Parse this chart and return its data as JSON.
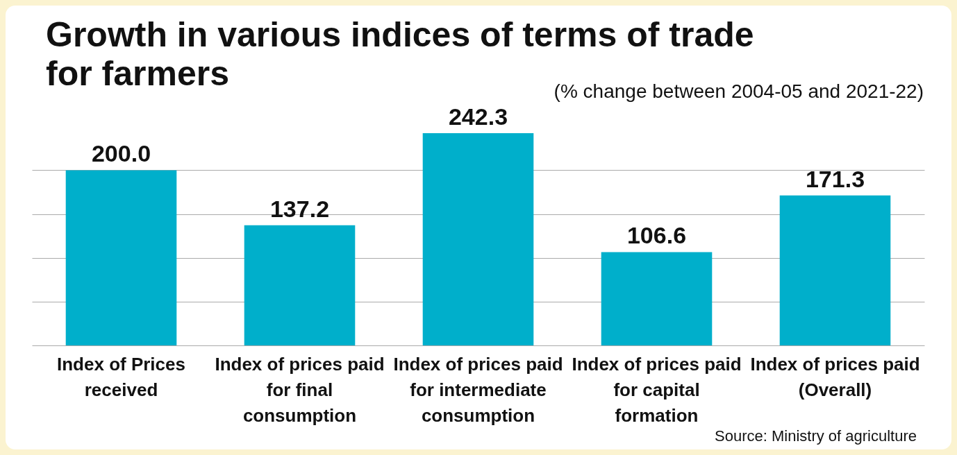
{
  "chart_data": {
    "type": "bar",
    "title": "Growth in various indices of terms of trade for farmers",
    "subtitle": "(% change between 2004-05 and 2021-22)",
    "annotations": [
      "Source: Ministry of agriculture"
    ],
    "categories": [
      "Index of Prices received",
      "Index of prices paid for final consumption",
      "Index of prices paid for intermediate consumption",
      "Index of prices paid for capital formation",
      "Index of prices paid (Overall)"
    ],
    "values": [
      200.0,
      137.2,
      242.3,
      106.6,
      171.3
    ],
    "value_labels": [
      "200.0",
      "137.2",
      "242.3",
      "106.6",
      "171.3"
    ],
    "color": "#00afcb",
    "grid": "y",
    "tick_labels": "x",
    "yticks": [
      {
        "value": 0,
        "label": null
      },
      {
        "value": 50,
        "label": null
      },
      {
        "value": 100,
        "label": null
      },
      {
        "value": 150,
        "label": null
      },
      {
        "value": 200,
        "label": null
      }
    ]
  }
}
